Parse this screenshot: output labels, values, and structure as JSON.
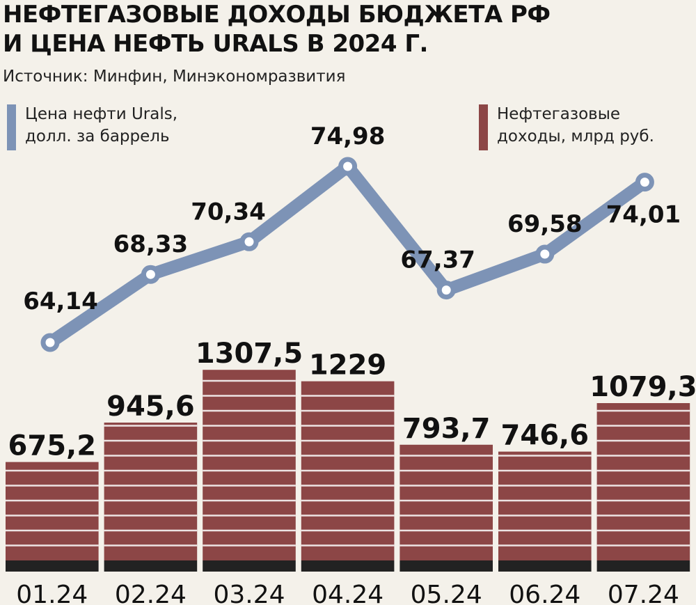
{
  "header": {
    "title_line1": "НЕФТЕГАЗОВЫЕ ДОХОДЫ БЮДЖЕТА РФ",
    "title_line2": "И ЦЕНА НЕФТЬ URALS В 2024 Г.",
    "source": "Источник: Минфин, Минэкономразвития"
  },
  "legend": {
    "line_label_1": "Цена  нефти Urals,",
    "line_label_2": "долл. за  баррель",
    "bar_label_1": "Нефтегазовые",
    "bar_label_2": "доходы, млрд руб."
  },
  "chart_data": {
    "type": "bar+line",
    "title": "НЕФТЕГАЗОВЫЕ ДОХОДЫ БЮДЖЕТА РФ И ЦЕНА НЕФТЬ URALS В 2024 Г.",
    "categories": [
      "01.24",
      "02.24",
      "03.24",
      "04.24",
      "05.24",
      "06.24",
      "07.24"
    ],
    "series": [
      {
        "name": "Нефтегазовые доходы, млрд руб.",
        "type": "bar",
        "values": [
          675.2,
          945.6,
          1307.5,
          1229,
          793.7,
          746.6,
          1079.3
        ],
        "labels": [
          "675,2",
          "945,6",
          "1307,5",
          "1229",
          "793,7",
          "746,6",
          "1079,3"
        ]
      },
      {
        "name": "Цена нефти Urals, долл. за баррель",
        "type": "line",
        "values": [
          64.14,
          68.33,
          70.34,
          74.98,
          67.37,
          69.58,
          74.01
        ],
        "labels": [
          "64,14",
          "68,33",
          "70,34",
          "74,98",
          "67,37",
          "69,58",
          "74,01"
        ]
      }
    ],
    "grid": false,
    "legend_position": "top"
  },
  "colors": {
    "background": "#f4f1ea",
    "bar": "#8c4646",
    "bar_stripe": "#ffffff",
    "bar_base": "#222222",
    "line": "#7d93b6",
    "marker_fill": "#ffffff"
  }
}
